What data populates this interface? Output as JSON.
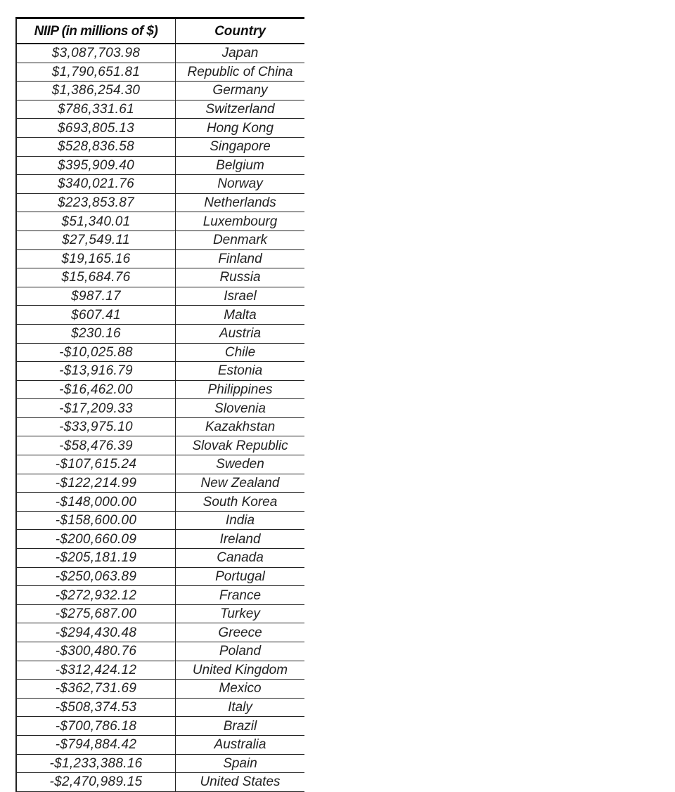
{
  "table": {
    "headers": [
      "NIIP (in millions of $)",
      "Country"
    ],
    "rows": [
      [
        "$3,087,703.98",
        "Japan"
      ],
      [
        "$1,790,651.81",
        "Republic of China"
      ],
      [
        "$1,386,254.30",
        "Germany"
      ],
      [
        "$786,331.61",
        "Switzerland"
      ],
      [
        "$693,805.13",
        "Hong Kong"
      ],
      [
        "$528,836.58",
        "Singapore"
      ],
      [
        "$395,909.40",
        "Belgium"
      ],
      [
        "$340,021.76",
        "Norway"
      ],
      [
        "$223,853.87",
        "Netherlands"
      ],
      [
        "$51,340.01",
        "Luxembourg"
      ],
      [
        "$27,549.11",
        "Denmark"
      ],
      [
        "$19,165.16",
        "Finland"
      ],
      [
        "$15,684.76",
        "Russia"
      ],
      [
        "$987.17",
        "Israel"
      ],
      [
        "$607.41",
        "Malta"
      ],
      [
        "$230.16",
        "Austria"
      ],
      [
        "-$10,025.88",
        "Chile"
      ],
      [
        "-$13,916.79",
        "Estonia"
      ],
      [
        "-$16,462.00",
        "Philippines"
      ],
      [
        "-$17,209.33",
        "Slovenia"
      ],
      [
        "-$33,975.10",
        "Kazakhstan"
      ],
      [
        "-$58,476.39",
        "Slovak Republic"
      ],
      [
        "-$107,615.24",
        "Sweden"
      ],
      [
        "-$122,214.99",
        "New Zealand"
      ],
      [
        "-$148,000.00",
        "South Korea"
      ],
      [
        "-$158,600.00",
        "India"
      ],
      [
        "-$200,660.09",
        "Ireland"
      ],
      [
        "-$205,181.19",
        "Canada"
      ],
      [
        "-$250,063.89",
        "Portugal"
      ],
      [
        "-$272,932.12",
        "France"
      ],
      [
        "-$275,687.00",
        "Turkey"
      ],
      [
        "-$294,430.48",
        "Greece"
      ],
      [
        "-$300,480.76",
        "Poland"
      ],
      [
        "-$312,424.12",
        "United Kingdom"
      ],
      [
        "-$362,731.69",
        "Mexico"
      ],
      [
        "-$508,374.53",
        "Italy"
      ],
      [
        "-$700,786.18",
        "Brazil"
      ],
      [
        "-$794,884.42",
        "Australia"
      ],
      [
        "-$1,233,388.16",
        "Spain"
      ],
      [
        "-$2,470,989.15",
        "United States"
      ]
    ]
  }
}
